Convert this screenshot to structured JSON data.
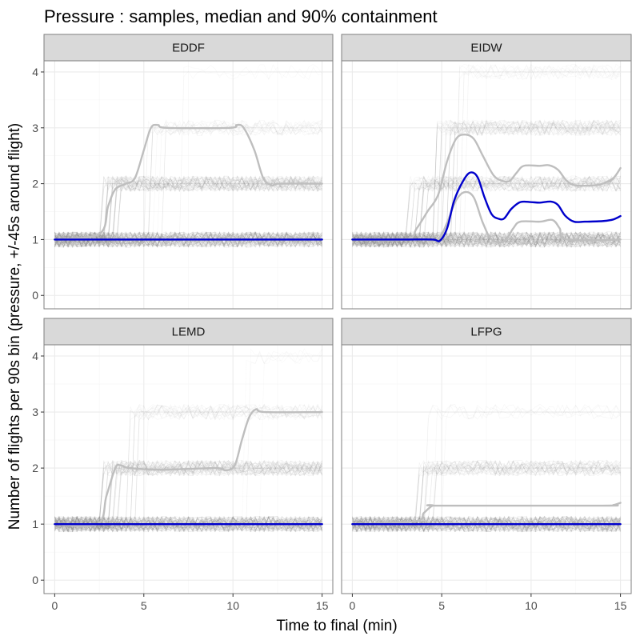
{
  "chart_data": {
    "type": "line",
    "title": "Pressure : samples, median and 90% containment",
    "xlabel": "Time to final (min)",
    "ylabel": "Number of flights per 90s bin (pressure, +/-45s around flight)",
    "xlim": [
      -0.6,
      15.6
    ],
    "ylim": [
      -0.24,
      4.2
    ],
    "x_ticks": [
      0,
      5,
      10,
      15
    ],
    "y_ticks": [
      0,
      1,
      2,
      3,
      4
    ],
    "grid": true,
    "legend": "none",
    "colors": {
      "median": "#0000cc",
      "containment": "#bebebe",
      "samples": "#808080",
      "strip_fill": "#d9d9d9",
      "panel_border": "#7f7f7f",
      "grid_major": "#ebebeb",
      "grid_minor": "#f5f5f5"
    },
    "panels": [
      {
        "name": "EDDF",
        "median": [
          [
            0,
            1
          ],
          [
            15,
            1
          ]
        ],
        "containment": [
          [
            [
              0,
              1
            ],
            [
              15,
              1
            ]
          ],
          [
            [
              0,
              1
            ],
            [
              2.5,
              1.1
            ],
            [
              3,
              1.6
            ],
            [
              3.4,
              1.9
            ],
            [
              4,
              2.0
            ],
            [
              4.5,
              2.1
            ],
            [
              5,
              2.6
            ],
            [
              5.4,
              3.0
            ],
            [
              5.8,
              3.05
            ],
            [
              6.3,
              3.0
            ],
            [
              9.8,
              3.0
            ],
            [
              10.2,
              3.05
            ],
            [
              10.6,
              3.0
            ],
            [
              11.2,
              2.6
            ],
            [
              11.7,
              2.1
            ],
            [
              12.2,
              1.97
            ],
            [
              12.6,
              2.0
            ],
            [
              15,
              2.0
            ]
          ]
        ],
        "sample_bands": [
          {
            "level": 1,
            "density": 60,
            "max": 15
          },
          {
            "level": 2,
            "density": 40,
            "min": 2.5,
            "max": 15
          },
          {
            "level": 3,
            "density": 12,
            "min": 5,
            "max": 15
          },
          {
            "level": 4,
            "density": 2,
            "min": 6,
            "max": 10
          }
        ]
      },
      {
        "name": "EIDW",
        "median": [
          [
            0,
            1
          ],
          [
            3,
            1
          ],
          [
            4.5,
            1.0
          ],
          [
            4.9,
            0.98
          ],
          [
            5.3,
            1.2
          ],
          [
            5.7,
            1.7
          ],
          [
            6.2,
            2.05
          ],
          [
            6.6,
            2.2
          ],
          [
            7.0,
            2.12
          ],
          [
            7.4,
            1.75
          ],
          [
            7.8,
            1.45
          ],
          [
            8.2,
            1.37
          ],
          [
            8.5,
            1.38
          ],
          [
            8.9,
            1.55
          ],
          [
            9.4,
            1.67
          ],
          [
            10.0,
            1.67
          ],
          [
            10.5,
            1.66
          ],
          [
            11.1,
            1.68
          ],
          [
            11.5,
            1.62
          ],
          [
            11.9,
            1.43
          ],
          [
            12.4,
            1.32
          ],
          [
            13.0,
            1.32
          ],
          [
            14.0,
            1.33
          ],
          [
            14.6,
            1.36
          ],
          [
            15,
            1.42
          ]
        ],
        "containment": [
          [
            [
              0,
              1
            ],
            [
              3,
              1
            ],
            [
              4.0,
              1.0
            ],
            [
              4.8,
              1.0
            ],
            [
              5.3,
              1.3
            ],
            [
              5.8,
              1.7
            ],
            [
              6.3,
              1.85
            ],
            [
              6.8,
              1.75
            ],
            [
              7.3,
              1.3
            ],
            [
              7.8,
              1.0
            ],
            [
              8.5,
              0.97
            ],
            [
              9.0,
              1.2
            ],
            [
              9.4,
              1.32
            ],
            [
              10.5,
              1.32
            ],
            [
              11.2,
              1.35
            ],
            [
              11.6,
              1.2
            ],
            [
              12.0,
              1.0
            ],
            [
              15,
              1.0
            ]
          ],
          [
            [
              0,
              1
            ],
            [
              3,
              1
            ],
            [
              3.6,
              1.2
            ],
            [
              4.2,
              1.5
            ],
            [
              4.8,
              1.8
            ],
            [
              5.3,
              2.4
            ],
            [
              5.8,
              2.8
            ],
            [
              6.3,
              2.88
            ],
            [
              6.8,
              2.8
            ],
            [
              7.3,
              2.5
            ],
            [
              7.9,
              2.15
            ],
            [
              8.4,
              2.05
            ],
            [
              8.8,
              2.05
            ],
            [
              9.2,
              2.2
            ],
            [
              9.6,
              2.32
            ],
            [
              10.5,
              2.32
            ],
            [
              11.0,
              2.33
            ],
            [
              11.5,
              2.25
            ],
            [
              12.0,
              2.05
            ],
            [
              12.5,
              1.97
            ],
            [
              13.5,
              1.97
            ],
            [
              14.0,
              2.0
            ],
            [
              14.6,
              2.1
            ],
            [
              15,
              2.28
            ]
          ]
        ],
        "sample_bands": [
          {
            "level": 1,
            "density": 55,
            "max": 15
          },
          {
            "level": 2,
            "density": 30,
            "min": 3,
            "max": 15
          },
          {
            "level": 3,
            "density": 30,
            "min": 4.5,
            "max": 15
          },
          {
            "level": 4,
            "density": 10,
            "min": 5.5,
            "max": 15
          }
        ]
      },
      {
        "name": "LEMD",
        "median": [
          [
            0,
            1
          ],
          [
            15,
            1
          ]
        ],
        "containment": [
          [
            [
              0,
              1
            ],
            [
              15,
              1
            ]
          ],
          [
            [
              0,
              1
            ],
            [
              2.4,
              1.0
            ],
            [
              2.9,
              1.5
            ],
            [
              3.4,
              2.0
            ],
            [
              3.7,
              2.05
            ],
            [
              4.2,
              2.0
            ],
            [
              6.0,
              1.97
            ],
            [
              9.0,
              2.0
            ],
            [
              9.6,
              1.96
            ],
            [
              10.1,
              2.05
            ],
            [
              10.5,
              2.5
            ],
            [
              10.9,
              2.9
            ],
            [
              11.3,
              3.05
            ],
            [
              11.8,
              3.0
            ],
            [
              15,
              3.0
            ]
          ]
        ],
        "sample_bands": [
          {
            "level": 1,
            "density": 60,
            "max": 15
          },
          {
            "level": 2,
            "density": 35,
            "min": 2.5,
            "max": 15
          },
          {
            "level": 3,
            "density": 14,
            "min": 4,
            "max": 15
          },
          {
            "level": 4,
            "density": 4,
            "min": 10.5,
            "max": 15
          }
        ]
      },
      {
        "name": "LFPG",
        "median": [
          [
            0,
            1
          ],
          [
            15,
            1
          ]
        ],
        "containment": [
          [
            [
              0,
              1
            ],
            [
              15,
              1
            ]
          ],
          [
            [
              0,
              1
            ],
            [
              3.5,
              1.05
            ],
            [
              4.0,
              1.2
            ],
            [
              4.5,
              1.33
            ],
            [
              5.0,
              1.33
            ],
            [
              14.0,
              1.33
            ],
            [
              14.6,
              1.34
            ],
            [
              15,
              1.38
            ]
          ]
        ],
        "sample_bands": [
          {
            "level": 1,
            "density": 60,
            "max": 15
          },
          {
            "level": 2,
            "density": 25,
            "min": 3.5,
            "max": 15
          },
          {
            "level": 3,
            "density": 4,
            "min": 4,
            "max": 15
          }
        ]
      }
    ]
  }
}
